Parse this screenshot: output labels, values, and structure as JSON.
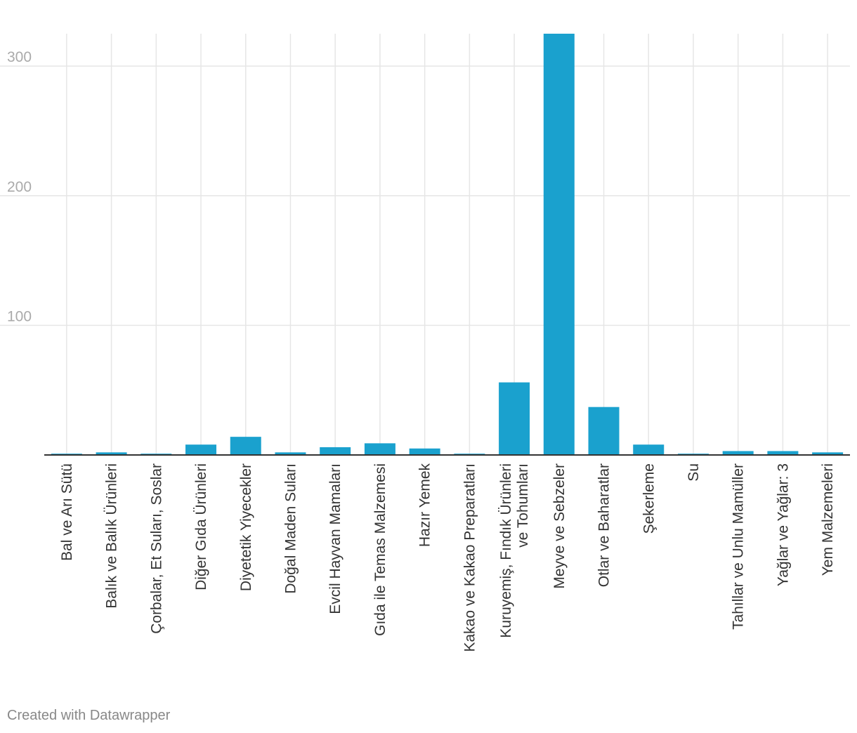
{
  "chart_data": {
    "type": "bar",
    "categories": [
      "Bal ve Arı Sütü",
      "Balık ve Balık Ürünleri",
      "Çorbalar, Et Suları, Soslar",
      "Diğer Gıda Ürünleri",
      "Diyetetik Yiyecekler",
      "Doğal Maden Suları",
      "Evcil Hayvan Mamaları",
      "Gıda ile Temas Malzemesi",
      "Hazır Yemek",
      "Kakao ve Kakao Preparatları",
      "Kuruyemiş, Fındık Ürünleri ve Tohumları",
      "Meyve ve Sebzeler",
      "Otlar ve Baharatlar",
      "Şekerleme",
      "Su",
      "Tahıllar ve Unlu Mamüller",
      "Yağlar ve Yağlar: 3",
      "Yem Malzemeleri"
    ],
    "values": [
      1,
      2,
      1,
      8,
      14,
      2,
      6,
      9,
      5,
      1,
      56,
      325,
      37,
      8,
      1,
      3,
      3,
      2
    ],
    "yticks": [
      100,
      200,
      300
    ],
    "ylim": [
      0,
      325
    ],
    "grid": true,
    "bar_color": "#1aa1ce",
    "title": "",
    "xlabel": "",
    "ylabel": ""
  },
  "footer": {
    "credit": "Created with Datawrapper"
  }
}
